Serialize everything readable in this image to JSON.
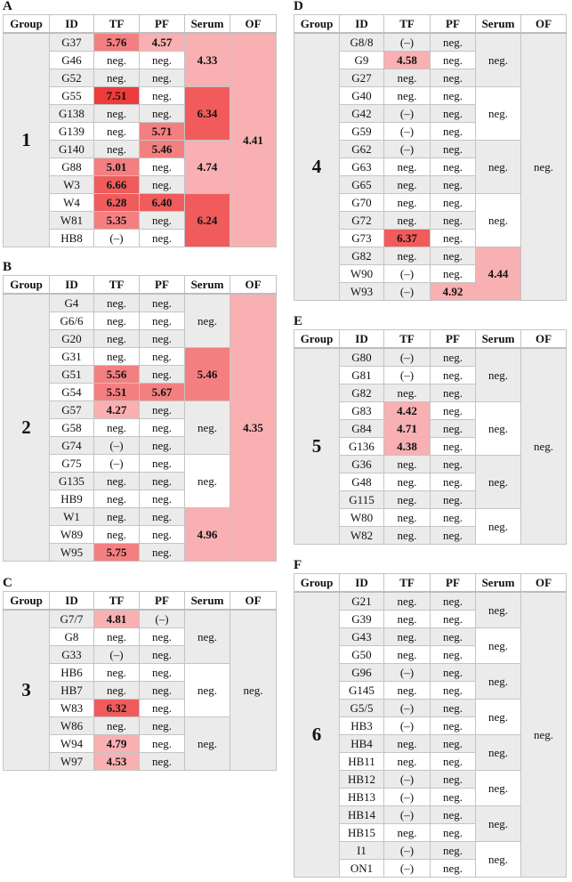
{
  "headers": [
    "Group",
    "ID",
    "TF",
    "PF",
    "Serum",
    "OF"
  ],
  "colors": {
    "neutral": "#ebebeb",
    "low": "#f8b0b2",
    "mid": "#f47f80",
    "high": "#f15b5b",
    "max": "#ee3b3b"
  },
  "panels": [
    {
      "label": "A",
      "group": "1",
      "of": "4.41",
      "serum": [
        {
          "value": "4.33",
          "rows": 3
        },
        {
          "value": "6.34",
          "rows": 3
        },
        {
          "value": "4.74",
          "rows": 3
        },
        {
          "value": "6.24",
          "rows": 3
        }
      ],
      "rows": [
        [
          "G37",
          "5.76",
          "4.57"
        ],
        [
          "G46",
          "neg.",
          "neg."
        ],
        [
          "G52",
          "neg.",
          "neg."
        ],
        [
          "G55",
          "7.51",
          "neg."
        ],
        [
          "G138",
          "neg.",
          "neg."
        ],
        [
          "G139",
          "neg.",
          "5.71"
        ],
        [
          "G140",
          "neg.",
          "5.46"
        ],
        [
          "G88",
          "5.01",
          "neg."
        ],
        [
          "W3",
          "6.66",
          "neg."
        ],
        [
          "W4",
          "6.28",
          "6.40"
        ],
        [
          "W81",
          "5.35",
          "neg."
        ],
        [
          "HB8",
          "(–)",
          "neg."
        ]
      ]
    },
    {
      "label": "B",
      "group": "2",
      "of": "4.35",
      "serum": [
        {
          "value": "neg.",
          "rows": 3
        },
        {
          "value": "5.46",
          "rows": 3
        },
        {
          "value": "neg.",
          "rows": 3
        },
        {
          "value": "neg.",
          "rows": 3
        },
        {
          "value": "4.96",
          "rows": 3
        }
      ],
      "rows": [
        [
          "G4",
          "neg.",
          "neg."
        ],
        [
          "G6/6",
          "neg.",
          "neg."
        ],
        [
          "G20",
          "neg.",
          "neg."
        ],
        [
          "G31",
          "neg.",
          "neg."
        ],
        [
          "G51",
          "5.56",
          "neg."
        ],
        [
          "G54",
          "5.51",
          "5.67"
        ],
        [
          "G57",
          "4.27",
          "neg."
        ],
        [
          "G58",
          "neg.",
          "neg."
        ],
        [
          "G74",
          "(–)",
          "neg."
        ],
        [
          "G75",
          "(–)",
          "neg."
        ],
        [
          "G135",
          "neg.",
          "neg."
        ],
        [
          "HB9",
          "neg.",
          "neg."
        ],
        [
          "W1",
          "neg.",
          "neg."
        ],
        [
          "W89",
          "neg.",
          "neg."
        ],
        [
          "W95",
          "5.75",
          "neg."
        ]
      ]
    },
    {
      "label": "C",
      "group": "3",
      "of": "neg.",
      "serum": [
        {
          "value": "neg.",
          "rows": 3
        },
        {
          "value": "neg.",
          "rows": 3
        },
        {
          "value": "neg.",
          "rows": 3
        }
      ],
      "rows": [
        [
          "G7/7",
          "4.81",
          "(–)"
        ],
        [
          "G8",
          "neg.",
          "neg."
        ],
        [
          "G33",
          "(–)",
          "neg."
        ],
        [
          "HB6",
          "neg.",
          "neg."
        ],
        [
          "HB7",
          "neg.",
          "neg."
        ],
        [
          "W83",
          "6.32",
          "neg."
        ],
        [
          "W86",
          "neg.",
          "neg."
        ],
        [
          "W94",
          "4.79",
          "neg."
        ],
        [
          "W97",
          "4.53",
          "neg."
        ]
      ]
    },
    {
      "label": "D",
      "group": "4",
      "of": "neg.",
      "serum": [
        {
          "value": "neg.",
          "rows": 3
        },
        {
          "value": "neg.",
          "rows": 3
        },
        {
          "value": "neg.",
          "rows": 3
        },
        {
          "value": "neg.",
          "rows": 3
        },
        {
          "value": "4.44",
          "rows": 3
        }
      ],
      "rows": [
        [
          "G8/8",
          "(–)",
          "neg."
        ],
        [
          "G9",
          "4.58",
          "neg."
        ],
        [
          "G27",
          "neg.",
          "neg."
        ],
        [
          "G40",
          "neg.",
          "neg."
        ],
        [
          "G42",
          "(–)",
          "neg."
        ],
        [
          "G59",
          "(–)",
          "neg."
        ],
        [
          "G62",
          "(–)",
          "neg."
        ],
        [
          "G63",
          "neg.",
          "neg."
        ],
        [
          "G65",
          "neg.",
          "neg."
        ],
        [
          "G70",
          "neg.",
          "neg."
        ],
        [
          "G72",
          "neg.",
          "neg."
        ],
        [
          "G73",
          "6.37",
          "neg."
        ],
        [
          "G82",
          "neg.",
          "neg."
        ],
        [
          "W90",
          "(–)",
          "neg."
        ],
        [
          "W93",
          "(–)",
          "4.92"
        ]
      ]
    },
    {
      "label": "E",
      "group": "5",
      "of": "neg.",
      "serum": [
        {
          "value": "neg.",
          "rows": 3
        },
        {
          "value": "neg.",
          "rows": 3
        },
        {
          "value": "neg.",
          "rows": 3
        },
        {
          "value": "neg.",
          "rows": 2
        }
      ],
      "rows": [
        [
          "G80",
          "(–)",
          "neg."
        ],
        [
          "G81",
          "(–)",
          "neg."
        ],
        [
          "G82",
          "neg.",
          "neg."
        ],
        [
          "G83",
          "4.42",
          "neg."
        ],
        [
          "G84",
          "4.71",
          "neg."
        ],
        [
          "G136",
          "4.38",
          "neg."
        ],
        [
          "G36",
          "neg.",
          "neg."
        ],
        [
          "G48",
          "neg.",
          "neg."
        ],
        [
          "G115",
          "neg.",
          "neg."
        ],
        [
          "W80",
          "neg.",
          "neg."
        ],
        [
          "W82",
          "neg.",
          "neg."
        ]
      ]
    },
    {
      "label": "F",
      "group": "6",
      "of": "neg.",
      "serum": [
        {
          "value": "neg.",
          "rows": 2
        },
        {
          "value": "neg.",
          "rows": 2
        },
        {
          "value": "neg.",
          "rows": 2
        },
        {
          "value": "neg.",
          "rows": 2
        },
        {
          "value": "neg.",
          "rows": 2
        },
        {
          "value": "neg.",
          "rows": 2
        },
        {
          "value": "neg.",
          "rows": 2
        },
        {
          "value": "neg.",
          "rows": 2
        }
      ],
      "rows": [
        [
          "G21",
          "neg.",
          "neg."
        ],
        [
          "G39",
          "neg.",
          "neg."
        ],
        [
          "G43",
          "neg.",
          "neg."
        ],
        [
          "G50",
          "neg.",
          "neg."
        ],
        [
          "G96",
          "(–)",
          "neg."
        ],
        [
          "G145",
          "neg.",
          "neg."
        ],
        [
          "G5/5",
          "(–)",
          "neg."
        ],
        [
          "HB3",
          "(–)",
          "neg."
        ],
        [
          "HB4",
          "neg.",
          "neg."
        ],
        [
          "HB11",
          "neg.",
          "neg."
        ],
        [
          "HB12",
          "(–)",
          "neg."
        ],
        [
          "HB13",
          "(–)",
          "neg."
        ],
        [
          "HB14",
          "(–)",
          "neg."
        ],
        [
          "HB15",
          "neg.",
          "neg."
        ],
        [
          "I1",
          "(–)",
          "neg."
        ],
        [
          "ON1",
          "(–)",
          "neg."
        ]
      ]
    }
  ]
}
